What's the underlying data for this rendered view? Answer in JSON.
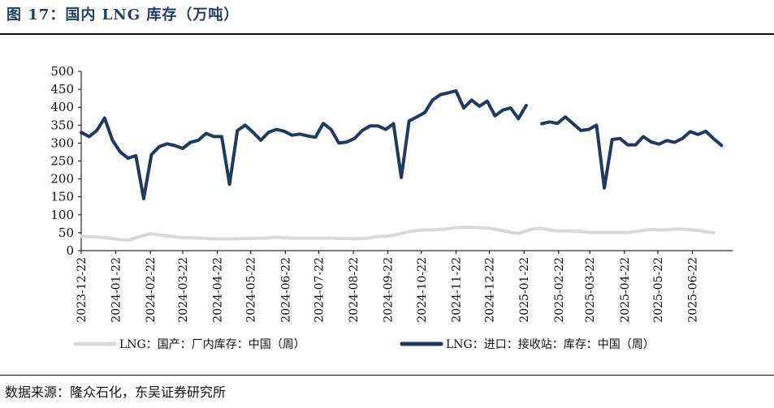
{
  "header": {
    "title": "图 17：国内 LNG 库存（万吨）"
  },
  "footer": {
    "source": "数据来源：隆众石化，东吴证券研究所"
  },
  "colors": {
    "import_series": "#1f3a5f",
    "domestic_series": "#d9d9d9",
    "title": "#1f3f66"
  },
  "chart_data": {
    "type": "line",
    "title": "",
    "xlabel": "",
    "ylabel": "",
    "ylim": [
      0,
      500
    ],
    "yticks": [
      0,
      50,
      100,
      150,
      200,
      250,
      300,
      350,
      400,
      450,
      500
    ],
    "xlim": [
      "2023-12-22",
      "2025-07-28"
    ],
    "xtick_labels": [
      "2023-12-22",
      "2024-01-22",
      "2024-02-22",
      "2024-03-22",
      "2024-04-22",
      "2024-05-22",
      "2024-06-22",
      "2024-07-22",
      "2024-08-22",
      "2024-09-22",
      "2024-10-22",
      "2024-11-22",
      "2024-12-22",
      "2025-01-22",
      "2025-02-22",
      "2025-03-22",
      "2025-04-22",
      "2025-05-22",
      "2025-06-22"
    ],
    "grid": false,
    "legend_position": "bottom",
    "series": [
      {
        "name": "LNG：国产：厂内库存：中国（周）",
        "color": "#d9d9d9",
        "points": [
          [
            "2023-12-22",
            40
          ],
          [
            "2023-12-29",
            39
          ],
          [
            "2024-01-05",
            38
          ],
          [
            "2024-01-12",
            36
          ],
          [
            "2024-01-19",
            34
          ],
          [
            "2024-01-26",
            31
          ],
          [
            "2024-02-02",
            29
          ],
          [
            "2024-02-09",
            36
          ],
          [
            "2024-02-16",
            42
          ],
          [
            "2024-02-23",
            47
          ],
          [
            "2024-03-01",
            44
          ],
          [
            "2024-03-08",
            41
          ],
          [
            "2024-03-15",
            39
          ],
          [
            "2024-03-22",
            36
          ],
          [
            "2024-03-29",
            36
          ],
          [
            "2024-04-05",
            35
          ],
          [
            "2024-04-12",
            34
          ],
          [
            "2024-04-19",
            33
          ],
          [
            "2024-04-26",
            33
          ],
          [
            "2024-05-03",
            33
          ],
          [
            "2024-05-10",
            33
          ],
          [
            "2024-05-17",
            34
          ],
          [
            "2024-05-24",
            34
          ],
          [
            "2024-05-31",
            35
          ],
          [
            "2024-06-07",
            35
          ],
          [
            "2024-06-14",
            38
          ],
          [
            "2024-06-21",
            36
          ],
          [
            "2024-06-28",
            35
          ],
          [
            "2024-07-05",
            35
          ],
          [
            "2024-07-12",
            35
          ],
          [
            "2024-07-19",
            35
          ],
          [
            "2024-07-26",
            35
          ],
          [
            "2024-08-02",
            35
          ],
          [
            "2024-08-09",
            34
          ],
          [
            "2024-08-16",
            34
          ],
          [
            "2024-08-23",
            33
          ],
          [
            "2024-08-30",
            34
          ],
          [
            "2024-09-06",
            36
          ],
          [
            "2024-09-13",
            39
          ],
          [
            "2024-09-20",
            40
          ],
          [
            "2024-09-27",
            43
          ],
          [
            "2024-10-04",
            48
          ],
          [
            "2024-10-11",
            53
          ],
          [
            "2024-10-18",
            56
          ],
          [
            "2024-10-25",
            58
          ],
          [
            "2024-11-01",
            58
          ],
          [
            "2024-11-08",
            59
          ],
          [
            "2024-11-15",
            61
          ],
          [
            "2024-11-22",
            64
          ],
          [
            "2024-11-29",
            65
          ],
          [
            "2024-12-06",
            65
          ],
          [
            "2024-12-13",
            64
          ],
          [
            "2024-12-20",
            63
          ],
          [
            "2024-12-27",
            60
          ],
          [
            "2025-01-03",
            56
          ],
          [
            "2025-01-10",
            51
          ],
          [
            "2025-01-17",
            48
          ],
          [
            "2025-01-24",
            55
          ],
          [
            "2025-01-31",
            61
          ],
          [
            "2025-02-07",
            62
          ],
          [
            "2025-02-14",
            58
          ],
          [
            "2025-02-21",
            55
          ],
          [
            "2025-02-28",
            55
          ],
          [
            "2025-03-07",
            55
          ],
          [
            "2025-03-14",
            54
          ],
          [
            "2025-03-21",
            51
          ],
          [
            "2025-03-28",
            50
          ],
          [
            "2025-04-04",
            50
          ],
          [
            "2025-04-11",
            50
          ],
          [
            "2025-04-18",
            51
          ],
          [
            "2025-04-25",
            51
          ],
          [
            "2025-05-02",
            53
          ],
          [
            "2025-05-09",
            56
          ],
          [
            "2025-05-16",
            59
          ],
          [
            "2025-05-23",
            58
          ],
          [
            "2025-05-30",
            58
          ],
          [
            "2025-06-06",
            60
          ],
          [
            "2025-06-13",
            60
          ],
          [
            "2025-06-20",
            58
          ],
          [
            "2025-06-27",
            56
          ],
          [
            "2025-07-04",
            53
          ],
          [
            "2025-07-11",
            50
          ]
        ]
      },
      {
        "name": "LNG：进口：接收站：库存：中国（周）",
        "color": "#1f3a5f",
        "points": [
          [
            "2023-12-22",
            330
          ],
          [
            "2023-12-29",
            318
          ],
          [
            "2024-01-05",
            335
          ],
          [
            "2024-01-12",
            370
          ],
          [
            "2024-01-19",
            308
          ],
          [
            "2024-01-26",
            275
          ],
          [
            "2024-02-02",
            258
          ],
          [
            "2024-02-09",
            265
          ],
          [
            "2024-02-16",
            145
          ],
          [
            "2024-02-23",
            268
          ],
          [
            "2024-03-01",
            290
          ],
          [
            "2024-03-08",
            298
          ],
          [
            "2024-03-15",
            293
          ],
          [
            "2024-03-22",
            285
          ],
          [
            "2024-03-29",
            302
          ],
          [
            "2024-04-05",
            308
          ],
          [
            "2024-04-12",
            327
          ],
          [
            "2024-04-19",
            318
          ],
          [
            "2024-04-26",
            318
          ],
          [
            "2024-05-03",
            185
          ],
          [
            "2024-05-10",
            335
          ],
          [
            "2024-05-17",
            350
          ],
          [
            "2024-05-24",
            330
          ],
          [
            "2024-05-31",
            308
          ],
          [
            "2024-06-07",
            330
          ],
          [
            "2024-06-14",
            338
          ],
          [
            "2024-06-21",
            333
          ],
          [
            "2024-06-28",
            322
          ],
          [
            "2024-07-05",
            325
          ],
          [
            "2024-07-12",
            320
          ],
          [
            "2024-07-19",
            316
          ],
          [
            "2024-07-26",
            355
          ],
          [
            "2024-08-02",
            338
          ],
          [
            "2024-08-09",
            300
          ],
          [
            "2024-08-16",
            303
          ],
          [
            "2024-08-23",
            313
          ],
          [
            "2024-08-30",
            335
          ],
          [
            "2024-09-06",
            348
          ],
          [
            "2024-09-13",
            348
          ],
          [
            "2024-09-20",
            338
          ],
          [
            "2024-09-27",
            354
          ],
          [
            "2024-10-04",
            204
          ],
          [
            "2024-10-11",
            362
          ],
          [
            "2024-10-18",
            373
          ],
          [
            "2024-10-25",
            385
          ],
          [
            "2024-11-01",
            420
          ],
          [
            "2024-11-08",
            435
          ],
          [
            "2024-11-15",
            440
          ],
          [
            "2024-11-22",
            446
          ],
          [
            "2024-11-29",
            398
          ],
          [
            "2024-12-06",
            420
          ],
          [
            "2024-12-13",
            403
          ],
          [
            "2024-12-20",
            417
          ],
          [
            "2024-12-27",
            376
          ],
          [
            "2025-01-03",
            392
          ],
          [
            "2025-01-10",
            398
          ],
          [
            "2025-01-17",
            368
          ],
          [
            "2025-01-24",
            405
          ],
          null,
          [
            "2025-02-07",
            354
          ],
          [
            "2025-02-14",
            359
          ],
          [
            "2025-02-21",
            355
          ],
          [
            "2025-02-28",
            373
          ],
          [
            "2025-03-07",
            354
          ],
          [
            "2025-03-14",
            335
          ],
          [
            "2025-03-21",
            338
          ],
          [
            "2025-03-28",
            350
          ],
          [
            "2025-04-04",
            175
          ],
          [
            "2025-04-11",
            310
          ],
          [
            "2025-04-18",
            313
          ],
          [
            "2025-04-25",
            295
          ],
          [
            "2025-05-02",
            295
          ],
          [
            "2025-05-09",
            318
          ],
          [
            "2025-05-16",
            303
          ],
          [
            "2025-05-23",
            297
          ],
          [
            "2025-05-30",
            307
          ],
          [
            "2025-06-06",
            302
          ],
          [
            "2025-06-13",
            313
          ],
          [
            "2025-06-20",
            332
          ],
          [
            "2025-06-27",
            324
          ],
          [
            "2025-07-04",
            333
          ],
          [
            "2025-07-11",
            312
          ],
          [
            "2025-07-18",
            294
          ]
        ]
      }
    ]
  }
}
